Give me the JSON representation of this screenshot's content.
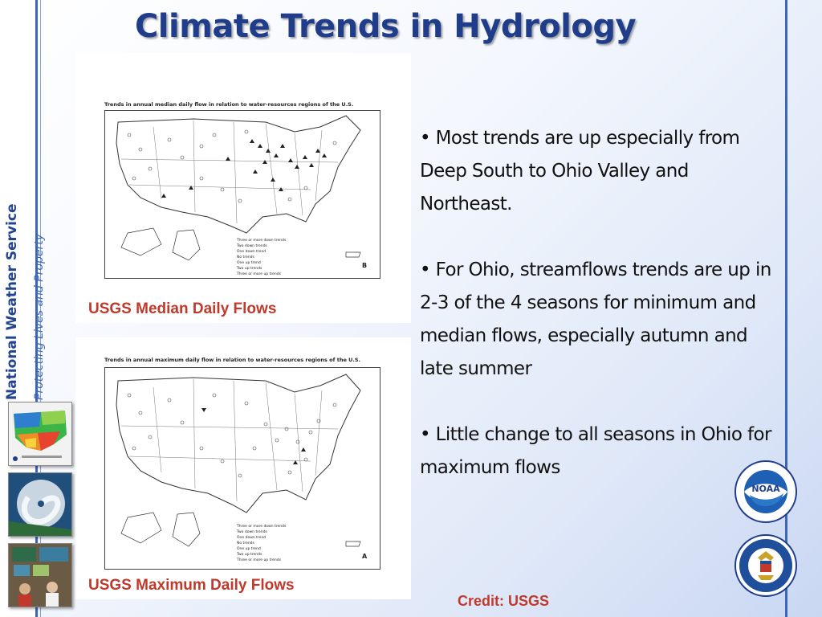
{
  "sidebar": {
    "organization": "National Weather Service",
    "tagline": "Protecting Lives and Property"
  },
  "slide": {
    "title": "Climate Trends in Hydrology",
    "credit": "Credit: USGS"
  },
  "figures": [
    {
      "map_title": "Trends in annual median daily flow in relation to water-resources regions of the U.S.",
      "caption": "USGS Median Daily Flows",
      "panel_letter": "B",
      "legend": [
        "Three or more down trends",
        "Two down trends",
        "One down trend",
        "No trends",
        "One up trend",
        "Two up trends",
        "Three or more up trends"
      ]
    },
    {
      "map_title": "Trends in annual maximum daily flow in relation to water-resources regions of the U.S.",
      "caption": "USGS Maximum Daily Flows",
      "panel_letter": "A",
      "legend": [
        "Three or more down trends",
        "Two down trends",
        "One down trend",
        "No trends",
        "One up trend",
        "Two up trends",
        "Three or more up trends"
      ]
    }
  ],
  "bullets": [
    "• Most trends are up especially from Deep South to Ohio Valley and Northeast.",
    "• For Ohio, streamflows trends are up in 2-3 of the 4 seasons for minimum and median flows, especially autumn and late summer",
    "• Little change to all seasons in Ohio for maximum flows"
  ],
  "colors": {
    "accent_blue": "#3c67b4",
    "title_blue": "#1f3d8a",
    "caption_red": "#c0392b"
  },
  "icons": [
    "temperature-map-thumbnail",
    "hurricane-satellite-thumbnail",
    "operations-center-thumbnail",
    "noaa-logo",
    "department-of-commerce-seal"
  ]
}
